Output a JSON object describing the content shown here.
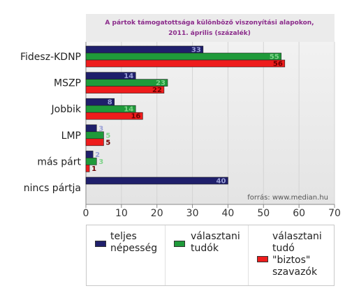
{
  "chart_data": {
    "type": "bar",
    "orientation": "horizontal",
    "title": "A pártok támogatottsága különböző viszonyítási alapokon,\n2011. április (százalék)",
    "source": "forrás: www.median.hu",
    "categories": [
      "Fidesz-KDNP",
      "MSZP",
      "Jobbik",
      "LMP",
      "más párt",
      "nincs pártja"
    ],
    "series": [
      {
        "name": "teljes\nnépesség",
        "color": "#1f1f6b",
        "label_color": "#9aa0d6",
        "values": [
          33,
          14,
          8,
          3,
          2,
          40
        ]
      },
      {
        "name": "választani\ntudók",
        "color": "#1f9a3a",
        "label_color": "#7fd38a",
        "values": [
          55,
          23,
          14,
          5,
          3,
          null
        ]
      },
      {
        "name": "választani\ntudó\n\"biztos\"\nszavazók",
        "color": "#ee1c1c",
        "label_color": "#6b0000",
        "values": [
          56,
          22,
          16,
          5,
          1,
          null
        ]
      }
    ],
    "xlim": [
      0,
      70
    ],
    "xticks": [
      0,
      10,
      20,
      30,
      40,
      50,
      60,
      70
    ],
    "grid": true,
    "legend_position": "bottom"
  }
}
